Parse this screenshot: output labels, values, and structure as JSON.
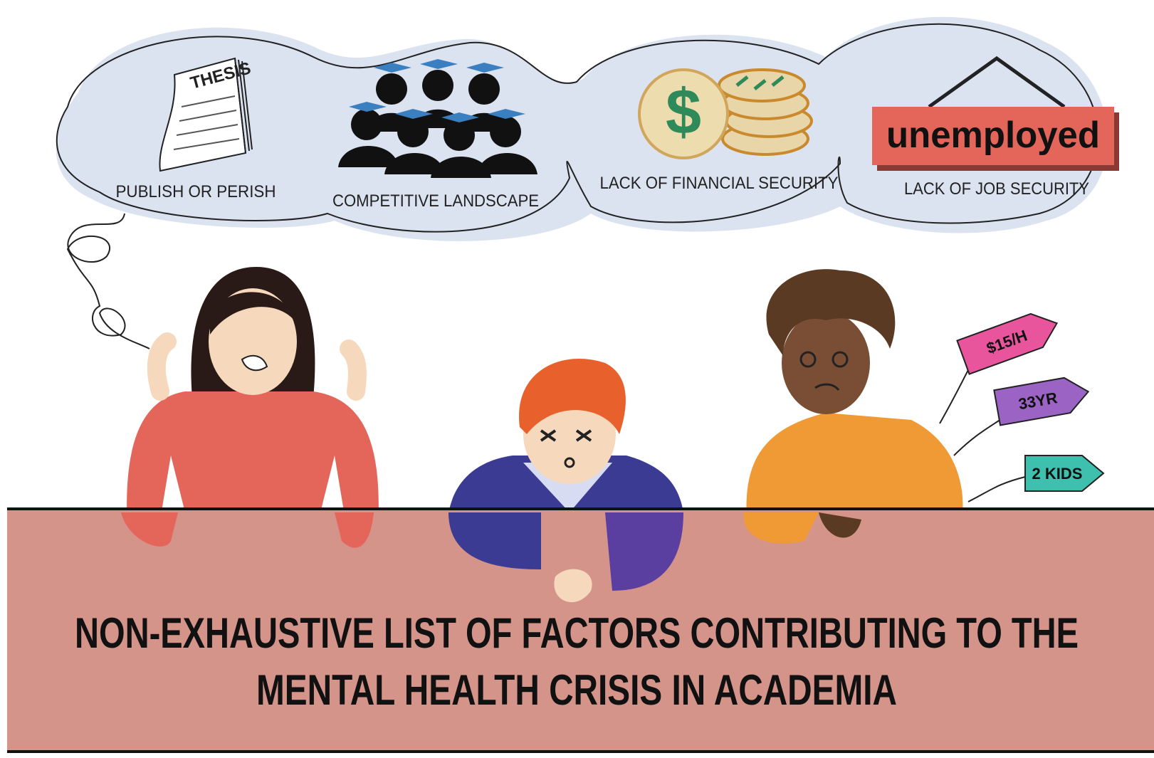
{
  "thought_cloud": {
    "items": [
      {
        "icon_text": "THESIS",
        "label": "PUBLISH OR PERISH"
      },
      {
        "label": "COMPETITIVE LANDSCAPE"
      },
      {
        "icon_text": "$",
        "label": "LACK OF FINANCIAL SECURITY"
      },
      {
        "icon_text": "unemployed",
        "label": "LACK OF JOB SECURITY"
      }
    ]
  },
  "tags": [
    "$15/H",
    "33YR",
    "2 KIDS"
  ],
  "title": {
    "lines": [
      "NON-EXHAUSTIVE LIST OF FACTORS CONTRIBUTING TO THE",
      "MENTAL HEALTH CRISIS IN ACADEMIA"
    ]
  }
}
